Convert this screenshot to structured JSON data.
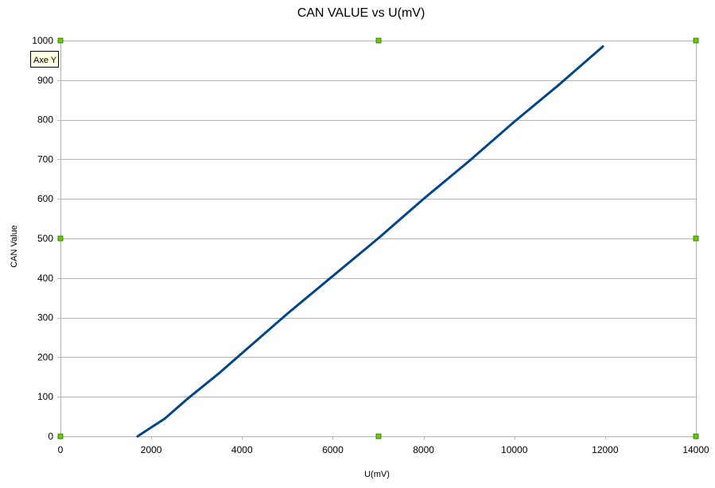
{
  "chart_data": {
    "type": "line",
    "title": "CAN VALUE  vs U(mV)",
    "xlabel": "U(mV)",
    "ylabel": "CAN Value",
    "xlim": [
      0,
      14000
    ],
    "ylim": [
      0,
      1000
    ],
    "x_ticks": [
      0,
      2000,
      4000,
      6000,
      8000,
      10000,
      12000,
      14000
    ],
    "y_ticks": [
      0,
      100,
      200,
      300,
      400,
      500,
      600,
      700,
      800,
      900,
      1000
    ],
    "grid": true,
    "legend": "none",
    "series": [
      {
        "color": "#004586",
        "x": [
          1700,
          1900,
          2300,
          2800,
          3500,
          4000,
          5000,
          6000,
          7000,
          8000,
          9000,
          10000,
          11000,
          11950
        ],
        "y": [
          0,
          15,
          45,
          95,
          160,
          210,
          310,
          405,
          500,
          600,
          695,
          795,
          890,
          985
        ]
      }
    ]
  },
  "selection": {
    "tooltip": "Axe Y",
    "handle_color": "#66cc00"
  }
}
